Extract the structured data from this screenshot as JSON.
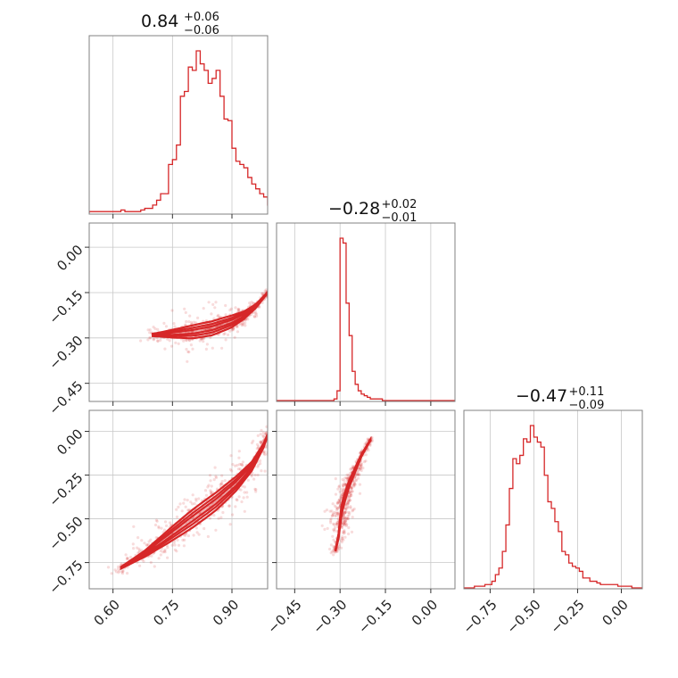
{
  "chart_data": {
    "type": "corner",
    "color": "#d62728",
    "grid": true,
    "parameters": [
      {
        "median": "0.84",
        "plus": "+0.06",
        "minus": "−0.06",
        "range": [
          0.54,
          0.99
        ],
        "ticks": [
          0.6,
          0.75,
          0.9
        ],
        "tick_labels": [
          "0.60",
          "0.75",
          "0.90"
        ],
        "hist_x": [
          0.54,
          0.55,
          0.56,
          0.57,
          0.58,
          0.59,
          0.6,
          0.61,
          0.62,
          0.63,
          0.64,
          0.65,
          0.66,
          0.67,
          0.68,
          0.69,
          0.7,
          0.71,
          0.72,
          0.73,
          0.74,
          0.75,
          0.76,
          0.77,
          0.78,
          0.79,
          0.8,
          0.81,
          0.82,
          0.83,
          0.84,
          0.85,
          0.86,
          0.87,
          0.88,
          0.89,
          0.9,
          0.91,
          0.92,
          0.93,
          0.94,
          0.95,
          0.96,
          0.97,
          0.98,
          0.99
        ],
        "hist_y": [
          1,
          1,
          1,
          1,
          1,
          1,
          1,
          1,
          2,
          1,
          1,
          1,
          1,
          2,
          3,
          3,
          5,
          8,
          12,
          12,
          30,
          33,
          42,
          72,
          75,
          90,
          88,
          100,
          92,
          88,
          80,
          83,
          88,
          72,
          58,
          57,
          40,
          32,
          30,
          28,
          22,
          18,
          15,
          12,
          10,
          5
        ]
      },
      {
        "median": "−0.28",
        "plus": "+0.02",
        "minus": "−0.01",
        "range": [
          -0.51,
          0.08
        ],
        "ticks": [
          -0.45,
          -0.3,
          -0.15,
          0.0
        ],
        "tick_labels": [
          "−0.45",
          "−0.30",
          "−0.15",
          "0.00"
        ],
        "hist_x": [
          -0.51,
          -0.5,
          -0.49,
          -0.48,
          -0.47,
          -0.46,
          -0.45,
          -0.44,
          -0.43,
          -0.42,
          -0.41,
          -0.4,
          -0.39,
          -0.38,
          -0.37,
          -0.36,
          -0.35,
          -0.34,
          -0.33,
          -0.32,
          -0.31,
          -0.3,
          -0.29,
          -0.28,
          -0.27,
          -0.26,
          -0.25,
          -0.24,
          -0.23,
          -0.22,
          -0.21,
          -0.2,
          -0.19,
          -0.18,
          -0.17,
          -0.16,
          -0.15,
          -0.14,
          -0.13,
          -0.12,
          -0.11,
          -0.1,
          -0.09,
          -0.08,
          -0.07,
          -0.06,
          -0.05,
          -0.04,
          -0.03,
          -0.02,
          -0.01,
          0.0,
          0.01,
          0.02,
          0.03,
          0.04,
          0.05,
          0.06,
          0.07
        ],
        "hist_y": [
          0,
          0,
          0,
          0,
          0,
          0,
          0,
          0,
          0,
          0,
          0,
          0,
          0,
          0,
          0,
          0,
          0,
          0,
          0,
          1,
          6,
          100,
          97,
          60,
          40,
          18,
          10,
          6,
          4,
          3,
          2,
          1,
          1,
          1,
          1,
          0,
          0,
          0,
          0,
          0,
          0,
          0,
          0,
          0,
          0,
          0,
          0,
          0,
          0,
          0,
          0,
          0,
          0,
          0,
          0,
          0,
          0,
          0,
          0
        ]
      },
      {
        "median": "−0.47",
        "plus": "+0.11",
        "minus": "−0.09",
        "range": [
          -0.9,
          0.12
        ],
        "ticks": [
          -0.75,
          -0.5,
          -0.25,
          0.0
        ],
        "tick_labels": [
          "−0.75",
          "−0.50",
          "−0.25",
          "0.00"
        ],
        "hist_x": [
          -0.9,
          -0.88,
          -0.86,
          -0.84,
          -0.82,
          -0.8,
          -0.78,
          -0.76,
          -0.74,
          -0.72,
          -0.7,
          -0.68,
          -0.66,
          -0.64,
          -0.62,
          -0.6,
          -0.58,
          -0.56,
          -0.54,
          -0.52,
          -0.5,
          -0.48,
          -0.46,
          -0.44,
          -0.42,
          -0.4,
          -0.38,
          -0.36,
          -0.34,
          -0.32,
          -0.3,
          -0.28,
          -0.26,
          -0.24,
          -0.22,
          -0.2,
          -0.18,
          -0.16,
          -0.14,
          -0.12,
          -0.1,
          -0.08,
          -0.06,
          -0.04,
          -0.02,
          0.0,
          0.02,
          0.04,
          0.06,
          0.08,
          0.1
        ],
        "hist_y": [
          0,
          0,
          0,
          1,
          1,
          1,
          2,
          2,
          4,
          8,
          12,
          22,
          38,
          60,
          78,
          75,
          80,
          90,
          88,
          98,
          91,
          88,
          85,
          68,
          52,
          48,
          40,
          34,
          22,
          20,
          15,
          13,
          12,
          10,
          6,
          6,
          4,
          4,
          3,
          2,
          2,
          2,
          2,
          2,
          1,
          1,
          1,
          1,
          0,
          0,
          0
        ]
      }
    ],
    "pairs": [
      {
        "xi": 0,
        "yi": 1,
        "curve": [
          [
            0.7,
            -0.29
          ],
          [
            0.75,
            -0.286
          ],
          [
            0.8,
            -0.28
          ],
          [
            0.85,
            -0.268
          ],
          [
            0.9,
            -0.245
          ],
          [
            0.93,
            -0.225
          ],
          [
            0.96,
            -0.195
          ],
          [
            0.99,
            -0.15
          ]
        ],
        "widths": [
          0.009,
          0.012,
          0.014,
          0.013,
          0.011,
          0.008,
          0.006,
          0.004
        ],
        "core": [
          0.74,
          0.93
        ]
      },
      {
        "xi": 0,
        "yi": 2,
        "curve": [
          [
            0.62,
            -0.78
          ],
          [
            0.68,
            -0.7
          ],
          [
            0.74,
            -0.6
          ],
          [
            0.8,
            -0.5
          ],
          [
            0.86,
            -0.4
          ],
          [
            0.91,
            -0.3
          ],
          [
            0.95,
            -0.2
          ],
          [
            0.98,
            -0.08
          ],
          [
            0.99,
            -0.02
          ]
        ],
        "widths": [
          0.012,
          0.018,
          0.026,
          0.03,
          0.028,
          0.024,
          0.018,
          0.012,
          0.008
        ],
        "core": [
          0.74,
          0.93
        ]
      },
      {
        "xi": 1,
        "yi": 2,
        "curve": [
          [
            -0.315,
            -0.68
          ],
          [
            -0.305,
            -0.6
          ],
          [
            -0.3,
            -0.52
          ],
          [
            -0.295,
            -0.45
          ],
          [
            -0.285,
            -0.38
          ],
          [
            -0.27,
            -0.3
          ],
          [
            -0.25,
            -0.22
          ],
          [
            -0.23,
            -0.14
          ],
          [
            -0.2,
            -0.05
          ]
        ],
        "widths": [
          0.01,
          0.014,
          0.016,
          0.015,
          0.013,
          0.011,
          0.009,
          0.007,
          0.005
        ],
        "core": [
          -0.62,
          -0.23
        ]
      }
    ]
  }
}
